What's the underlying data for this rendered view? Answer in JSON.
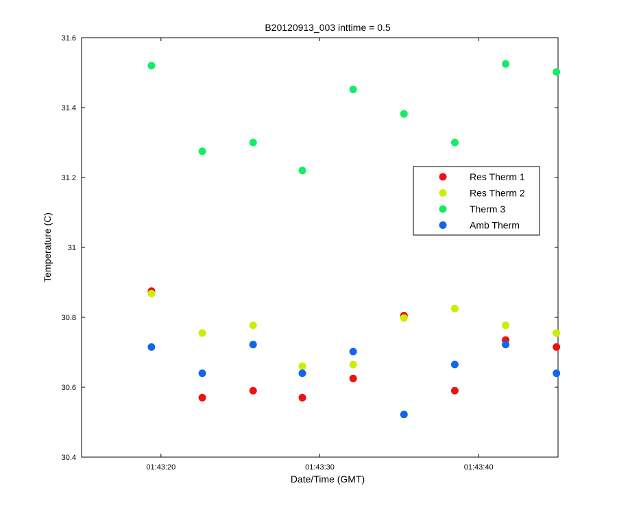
{
  "chart_data": {
    "type": "scatter",
    "title": "B20120913_003 inttime = 0.5",
    "xlabel": "Date/Time (GMT)",
    "ylabel": "Temperature (C)",
    "xlim": [
      "01:43:15",
      "01:43:45"
    ],
    "ylim": [
      30.4,
      31.6
    ],
    "x_ticks": [
      "01:43:20",
      "01:43:30",
      "01:43:40"
    ],
    "y_ticks": [
      "30.4",
      "30.6",
      "30.8",
      "31",
      "31.2",
      "31.4",
      "31.6"
    ],
    "grid": false,
    "legend_position": "right",
    "x": [
      "01:43:19.4",
      "01:43:22.6",
      "01:43:25.8",
      "01:43:28.9",
      "01:43:32.1",
      "01:43:35.3",
      "01:43:38.5",
      "01:43:41.7",
      "01:43:44.9"
    ],
    "series": [
      {
        "name": "Res Therm 1",
        "color": "#ee1111",
        "values": [
          30.875,
          30.57,
          30.59,
          30.57,
          30.625,
          30.805,
          30.59,
          30.735,
          30.715
        ]
      },
      {
        "name": "Res Therm 2",
        "color": "#ccee00",
        "values": [
          30.868,
          30.755,
          30.777,
          30.66,
          30.665,
          30.798,
          30.825,
          30.777,
          30.755
        ]
      },
      {
        "name": "Therm 3",
        "color": "#11ee66",
        "values": [
          31.52,
          31.275,
          31.3,
          31.22,
          31.452,
          31.382,
          31.3,
          31.525,
          31.502
        ]
      },
      {
        "name": "Amb Therm",
        "color": "#1166ee",
        "values": [
          30.715,
          30.64,
          30.722,
          30.64,
          30.702,
          30.522,
          30.665,
          30.722,
          30.64
        ]
      }
    ]
  }
}
